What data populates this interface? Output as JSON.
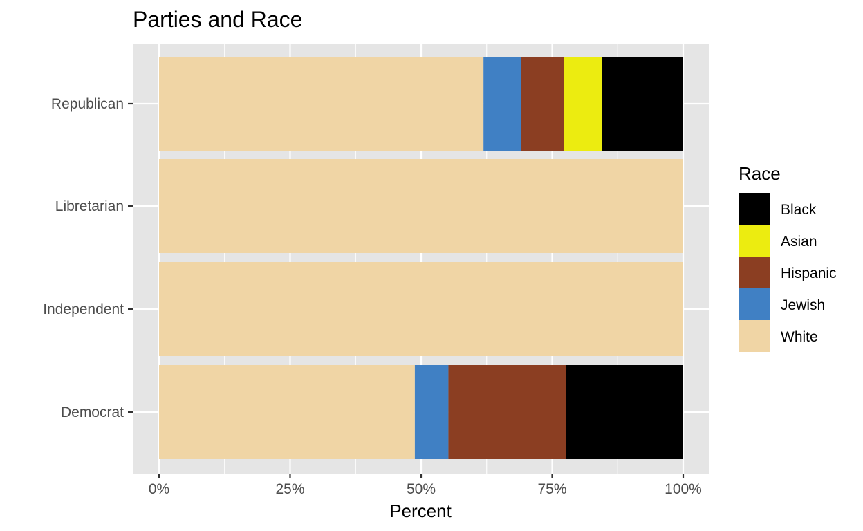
{
  "chart_data": {
    "type": "bar",
    "orientation": "horizontal",
    "stacked": true,
    "title": "Parties and Race",
    "xlabel": "Percent",
    "ylabel": "",
    "categories": [
      "Republican",
      "Libretarian",
      "Independent",
      "Democrat"
    ],
    "x_ticks": [
      "0%",
      "25%",
      "50%",
      "75%",
      "100%"
    ],
    "xlim": [
      0,
      100
    ],
    "grid": true,
    "legend": {
      "title": "Race",
      "position": "right"
    },
    "series": [
      {
        "name": "White",
        "color": "#F0D5A5",
        "values": [
          61.9,
          100,
          100,
          48.8
        ]
      },
      {
        "name": "Jewish",
        "color": "#4080C4",
        "values": [
          7.2,
          0,
          0,
          6.4
        ]
      },
      {
        "name": "Hispanic",
        "color": "#8B3E22",
        "values": [
          8.1,
          0,
          0,
          22.5
        ]
      },
      {
        "name": "Asian",
        "color": "#ECEC10",
        "values": [
          7.3,
          0,
          0,
          0
        ]
      },
      {
        "name": "Black",
        "color": "#000000",
        "values": [
          15.5,
          0,
          0,
          22.3
        ]
      }
    ],
    "legend_order": [
      "Black",
      "Asian",
      "Hispanic",
      "Jewish",
      "White"
    ],
    "panel_background": "#E5E5E5"
  }
}
